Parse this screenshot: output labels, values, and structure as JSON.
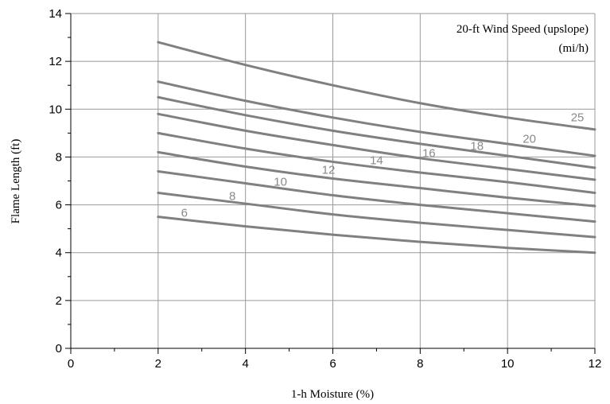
{
  "chart_data": {
    "type": "line",
    "title": "",
    "xlabel": "1-h Moisture (%)",
    "ylabel": "Flame Length (ft)",
    "xlim": [
      0,
      12
    ],
    "ylim": [
      0,
      14
    ],
    "x_ticks": [
      0,
      2,
      4,
      6,
      8,
      10,
      12
    ],
    "y_ticks": [
      0,
      2,
      4,
      6,
      8,
      10,
      12,
      14
    ],
    "x_minor_step": 1,
    "y_minor_step": 1,
    "grid": true,
    "legend": {
      "title_line1": "20-ft Wind Speed (upslope)",
      "title_line2": "(mi/h)",
      "placement": "top-right"
    },
    "line_color": "#808080",
    "label_color": "#8a8a8a",
    "series": [
      {
        "name": "6",
        "label_x": 2.6,
        "label_y": 5.5,
        "x": [
          2,
          4,
          6,
          8,
          10,
          12
        ],
        "y": [
          5.5,
          5.1,
          4.75,
          4.45,
          4.2,
          4.0
        ]
      },
      {
        "name": "8",
        "label_x": 3.7,
        "label_y": 6.2,
        "x": [
          2,
          4,
          6,
          8,
          10,
          12
        ],
        "y": [
          6.5,
          6.05,
          5.6,
          5.25,
          4.95,
          4.65
        ]
      },
      {
        "name": "10",
        "label_x": 4.8,
        "label_y": 6.8,
        "x": [
          2,
          4,
          6,
          8,
          10,
          12
        ],
        "y": [
          7.4,
          6.9,
          6.4,
          6.0,
          5.65,
          5.3
        ]
      },
      {
        "name": "12",
        "label_x": 5.9,
        "label_y": 7.3,
        "x": [
          2,
          4,
          6,
          8,
          10,
          12
        ],
        "y": [
          8.2,
          7.6,
          7.1,
          6.7,
          6.3,
          5.95
        ]
      },
      {
        "name": "14",
        "label_x": 7.0,
        "label_y": 7.7,
        "x": [
          2,
          4,
          6,
          8,
          10,
          12
        ],
        "y": [
          9.0,
          8.35,
          7.8,
          7.35,
          6.95,
          6.5
        ]
      },
      {
        "name": "16",
        "label_x": 8.2,
        "label_y": 8.0,
        "x": [
          2,
          4,
          6,
          8,
          10,
          12
        ],
        "y": [
          9.8,
          9.1,
          8.5,
          7.95,
          7.5,
          7.05
        ]
      },
      {
        "name": "18",
        "label_x": 9.3,
        "label_y": 8.3,
        "x": [
          2,
          4,
          6,
          8,
          10,
          12
        ],
        "y": [
          10.5,
          9.75,
          9.1,
          8.55,
          8.05,
          7.55
        ]
      },
      {
        "name": "20",
        "label_x": 10.5,
        "label_y": 8.6,
        "x": [
          2,
          4,
          6,
          8,
          10,
          12
        ],
        "y": [
          11.15,
          10.35,
          9.65,
          9.05,
          8.55,
          8.05
        ]
      },
      {
        "name": "25",
        "label_x": 11.6,
        "label_y": 9.5,
        "x": [
          2,
          4,
          6,
          8,
          10,
          12
        ],
        "y": [
          12.8,
          11.85,
          11.0,
          10.25,
          9.65,
          9.15
        ]
      }
    ]
  }
}
